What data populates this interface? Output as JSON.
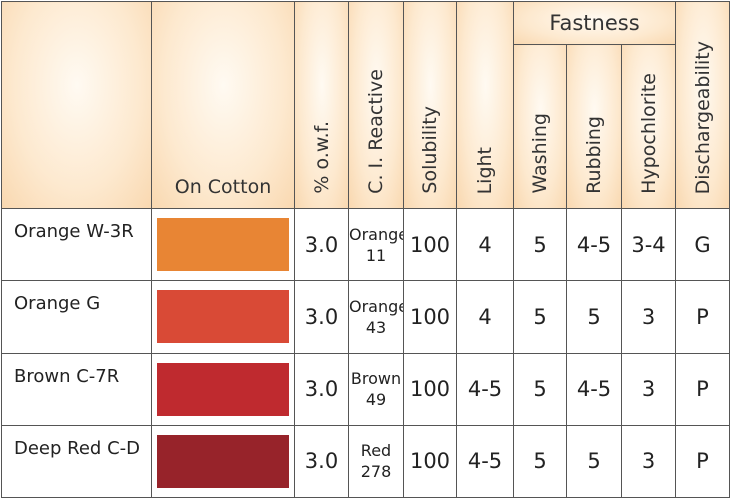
{
  "headers": {
    "on_cotton": "On Cotton",
    "owf": "% o.w.f.",
    "ci_reactive": "C. I. Reactive",
    "solubility": "Solubility",
    "light": "Light",
    "fastness": "Fastness",
    "washing": "Washing",
    "rubbing": "Rubbing",
    "hypochlorite": "Hypochlorite",
    "dischargeability": "Dischargeability"
  },
  "rows": [
    {
      "name": "Orange W-3R",
      "color": "#e88534",
      "owf": "3.0",
      "ci_name": "Orange",
      "ci_number": "11",
      "solubility": "100",
      "light": "4",
      "washing": "5",
      "rubbing": "4-5",
      "hypochlorite": "3-4",
      "dischargeability": "G"
    },
    {
      "name": "Orange G",
      "color": "#d94a36",
      "owf": "3.0",
      "ci_name": "Orange",
      "ci_number": "43",
      "solubility": "100",
      "light": "4",
      "washing": "5",
      "rubbing": "5",
      "hypochlorite": "3",
      "dischargeability": "P"
    },
    {
      "name": "Brown C-7R",
      "color": "#bf2a2f",
      "owf": "3.0",
      "ci_name": "Brown",
      "ci_number": "49",
      "solubility": "100",
      "light": "4-5",
      "washing": "5",
      "rubbing": "4-5",
      "hypochlorite": "3",
      "dischargeability": "P"
    },
    {
      "name": "Deep Red C-D",
      "color": "#97232a",
      "owf": "3.0",
      "ci_name": "Red",
      "ci_number": "278",
      "solubility": "100",
      "light": "4-5",
      "washing": "5",
      "rubbing": "5",
      "hypochlorite": "3",
      "dischargeability": "P"
    }
  ]
}
